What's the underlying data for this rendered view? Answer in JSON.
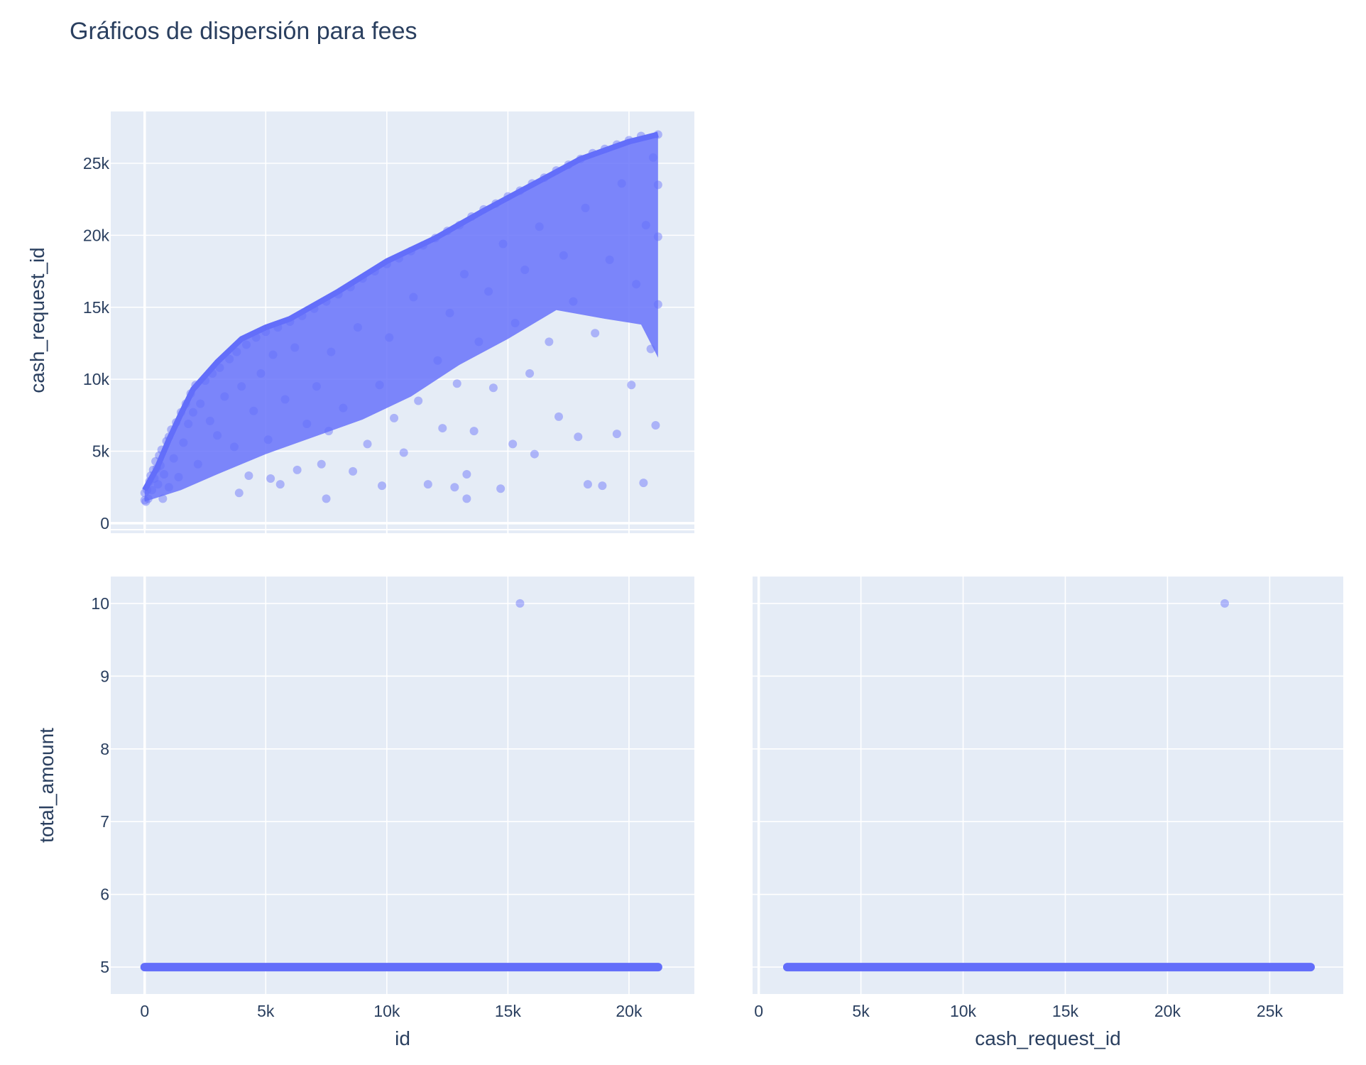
{
  "title": "Gráficos de dispersión para fees",
  "colors": {
    "marker": "#636efa",
    "plot_bg": "#e5ecf6",
    "grid": "#ffffff",
    "text": "#2a3f5f"
  },
  "chart_data": [
    {
      "id": "top-left",
      "type": "scatter",
      "xlabel": "",
      "ylabel": "cash_request_id",
      "xlim": [
        -1400,
        22700
      ],
      "ylim": [
        -400,
        28600
      ],
      "xticks": [
        0,
        5000,
        10000,
        15000,
        20000
      ],
      "xtick_labels": [],
      "yticks": [
        0,
        5000,
        10000,
        15000,
        20000,
        25000
      ],
      "ytick_labels": [
        "0",
        "5k",
        "10k",
        "15k",
        "20k",
        "25k"
      ],
      "grid": true,
      "points": [
        [
          0,
          1600
        ],
        [
          0,
          2100
        ],
        [
          50,
          1500
        ],
        [
          100,
          2300
        ],
        [
          150,
          1700
        ],
        [
          200,
          2900
        ],
        [
          250,
          3300
        ],
        [
          300,
          2300
        ],
        [
          350,
          3700
        ],
        [
          400,
          3100
        ],
        [
          450,
          4300
        ],
        [
          500,
          3800
        ],
        [
          550,
          2700
        ],
        [
          600,
          4700
        ],
        [
          650,
          4000
        ],
        [
          700,
          5100
        ],
        [
          750,
          1700
        ],
        [
          800,
          3400
        ],
        [
          900,
          5700
        ],
        [
          1000,
          6000
        ],
        [
          1000,
          2500
        ],
        [
          1100,
          6500
        ],
        [
          1200,
          4500
        ],
        [
          1300,
          7000
        ],
        [
          1400,
          3200
        ],
        [
          1500,
          7700
        ],
        [
          1600,
          5600
        ],
        [
          1700,
          8300
        ],
        [
          1800,
          6900
        ],
        [
          1900,
          9000
        ],
        [
          2000,
          7700
        ],
        [
          2100,
          9600
        ],
        [
          2200,
          4100
        ],
        [
          2300,
          8300
        ],
        [
          2500,
          9900
        ],
        [
          2700,
          7100
        ],
        [
          2800,
          10400
        ],
        [
          3000,
          6100
        ],
        [
          3100,
          10800
        ],
        [
          3300,
          8800
        ],
        [
          3500,
          11400
        ],
        [
          3700,
          5300
        ],
        [
          3800,
          11900
        ],
        [
          3900,
          2100
        ],
        [
          4000,
          9500
        ],
        [
          4200,
          12400
        ],
        [
          4300,
          3300
        ],
        [
          4500,
          7800
        ],
        [
          4600,
          12900
        ],
        [
          4800,
          10400
        ],
        [
          5000,
          13300
        ],
        [
          5100,
          5800
        ],
        [
          5200,
          3100
        ],
        [
          5300,
          11700
        ],
        [
          5500,
          13600
        ],
        [
          5600,
          2700
        ],
        [
          5800,
          8600
        ],
        [
          6000,
          14000
        ],
        [
          6200,
          12200
        ],
        [
          6300,
          3700
        ],
        [
          6500,
          14400
        ],
        [
          6700,
          6900
        ],
        [
          7000,
          14900
        ],
        [
          7100,
          9500
        ],
        [
          7300,
          4100
        ],
        [
          7500,
          15400
        ],
        [
          7500,
          1700
        ],
        [
          7600,
          6400
        ],
        [
          7700,
          11900
        ],
        [
          8000,
          15900
        ],
        [
          8200,
          8000
        ],
        [
          8500,
          16400
        ],
        [
          8600,
          3600
        ],
        [
          8800,
          13600
        ],
        [
          9000,
          17000
        ],
        [
          9200,
          5500
        ],
        [
          9500,
          17500
        ],
        [
          9700,
          9600
        ],
        [
          9800,
          2600
        ],
        [
          10000,
          18000
        ],
        [
          10100,
          12900
        ],
        [
          10300,
          7300
        ],
        [
          10500,
          18400
        ],
        [
          10700,
          4900
        ],
        [
          11000,
          18900
        ],
        [
          11100,
          15700
        ],
        [
          11300,
          8500
        ],
        [
          11500,
          19300
        ],
        [
          11700,
          2700
        ],
        [
          12000,
          19800
        ],
        [
          12100,
          11300
        ],
        [
          12300,
          6600
        ],
        [
          12500,
          20300
        ],
        [
          12600,
          14600
        ],
        [
          12800,
          2500
        ],
        [
          12900,
          9700
        ],
        [
          13000,
          20700
        ],
        [
          13200,
          17300
        ],
        [
          13300,
          1700
        ],
        [
          13300,
          3400
        ],
        [
          13500,
          21300
        ],
        [
          13600,
          6400
        ],
        [
          13800,
          12600
        ],
        [
          14000,
          21800
        ],
        [
          14200,
          16100
        ],
        [
          14400,
          9400
        ],
        [
          14500,
          22200
        ],
        [
          14700,
          2400
        ],
        [
          14800,
          19400
        ],
        [
          15000,
          22700
        ],
        [
          15200,
          5500
        ],
        [
          15300,
          13900
        ],
        [
          15500,
          23100
        ],
        [
          15700,
          17600
        ],
        [
          15900,
          10400
        ],
        [
          16000,
          23600
        ],
        [
          16100,
          4800
        ],
        [
          16300,
          20600
        ],
        [
          16500,
          24000
        ],
        [
          16700,
          12600
        ],
        [
          17000,
          24500
        ],
        [
          17100,
          7400
        ],
        [
          17300,
          18600
        ],
        [
          17500,
          24900
        ],
        [
          17700,
          15400
        ],
        [
          17900,
          6000
        ],
        [
          18000,
          25300
        ],
        [
          18200,
          21900
        ],
        [
          18300,
          2700
        ],
        [
          18500,
          25700
        ],
        [
          18600,
          13200
        ],
        [
          18900,
          2600
        ],
        [
          19000,
          26000
        ],
        [
          19200,
          18300
        ],
        [
          19500,
          26300
        ],
        [
          19500,
          6200
        ],
        [
          19700,
          23600
        ],
        [
          20000,
          26600
        ],
        [
          20100,
          9600
        ],
        [
          20300,
          16600
        ],
        [
          20500,
          26900
        ],
        [
          20600,
          2800
        ],
        [
          20700,
          20700
        ],
        [
          20900,
          12100
        ],
        [
          21000,
          25400
        ],
        [
          21100,
          6800
        ],
        [
          21200,
          27000
        ],
        [
          21200,
          15200
        ],
        [
          21200,
          19900
        ],
        [
          21200,
          23500
        ]
      ]
    },
    {
      "id": "bottom-left",
      "type": "scatter",
      "xlabel": "id",
      "ylabel": "total_amount",
      "xlim": [
        -1400,
        22700
      ],
      "ylim": [
        4.63,
        10.37
      ],
      "xticks": [
        0,
        5000,
        10000,
        15000,
        20000
      ],
      "xtick_labels": [
        "0",
        "5k",
        "10k",
        "15k",
        "20k"
      ],
      "yticks": [
        5,
        6,
        7,
        8,
        9,
        10
      ],
      "ytick_labels": [
        "5",
        "6",
        "7",
        "8",
        "9",
        "10"
      ],
      "grid": true,
      "band": {
        "y": 5,
        "x_range": [
          0,
          21200
        ]
      },
      "points": [
        [
          15500,
          10
        ]
      ]
    },
    {
      "id": "bottom-right",
      "type": "scatter",
      "xlabel": "cash_request_id",
      "ylabel": "",
      "xlim": [
        -300,
        28600
      ],
      "ylim": [
        4.63,
        10.37
      ],
      "xticks": [
        0,
        5000,
        10000,
        15000,
        20000,
        25000
      ],
      "xtick_labels": [
        "0",
        "5k",
        "10k",
        "15k",
        "20k",
        "25k"
      ],
      "yticks": [
        5,
        6,
        7,
        8,
        9,
        10
      ],
      "ytick_labels": [],
      "grid": true,
      "band": {
        "y": 5,
        "x_range": [
          1400,
          27000
        ]
      },
      "points": [
        [
          22800,
          10
        ]
      ]
    }
  ]
}
